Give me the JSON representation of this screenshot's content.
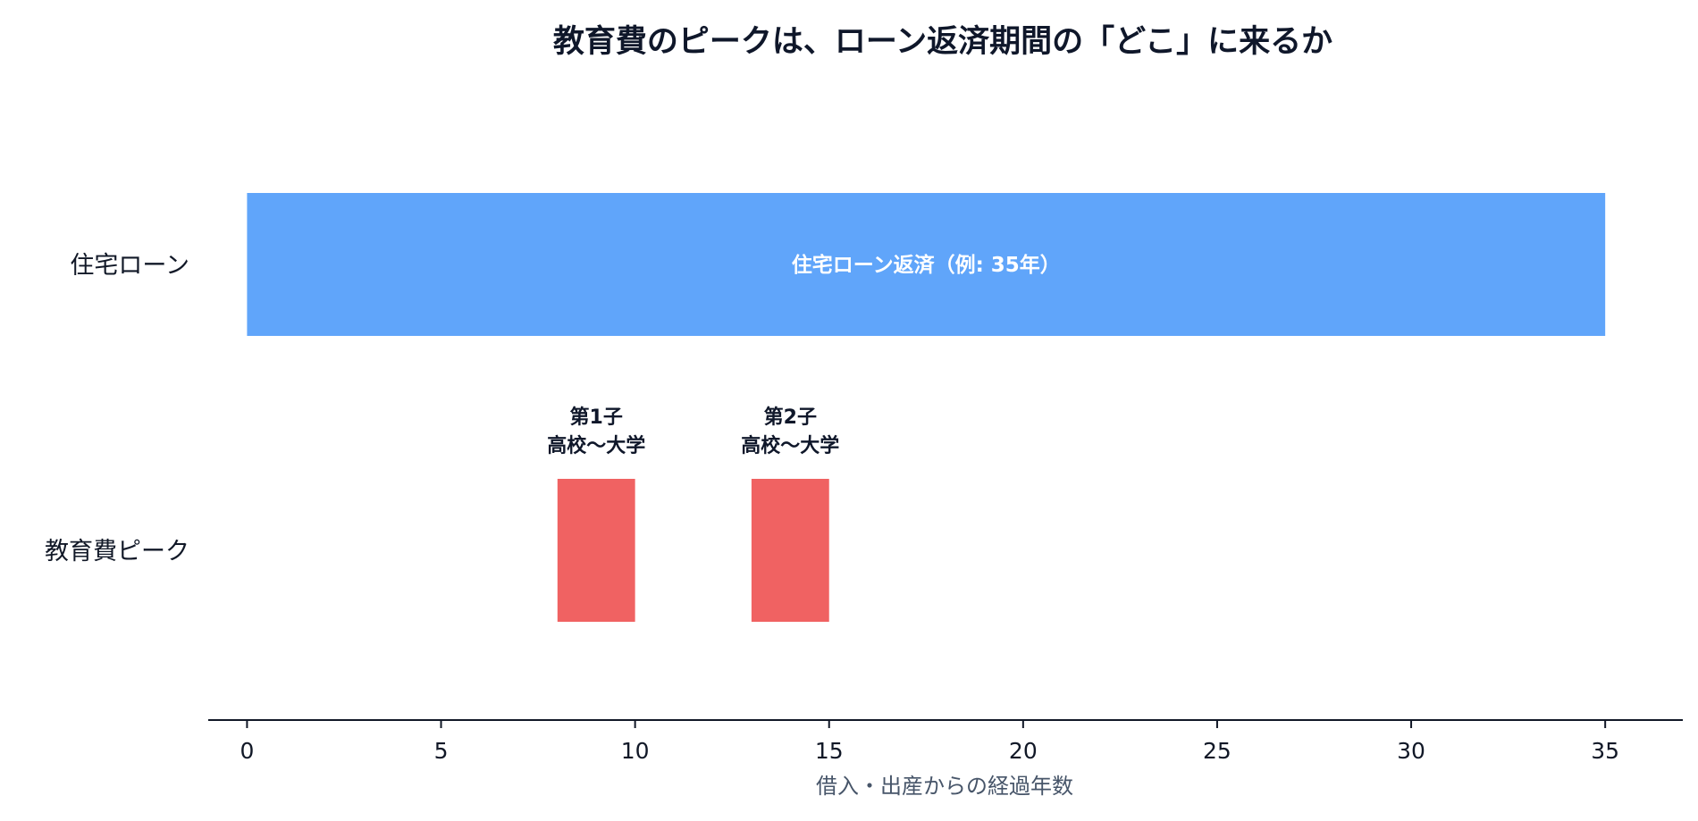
{
  "chart_data": {
    "type": "bar",
    "orientation": "horizontal-timeline",
    "title": "教育費のピークは、ローン返済期間の「どこ」に来るか",
    "xlabel": "借入・出産からの経過年数",
    "ylabel": "",
    "xlim": [
      -1,
      37
    ],
    "xticks": [
      0,
      5,
      10,
      15,
      20,
      25,
      30,
      35
    ],
    "grid": false,
    "categories": [
      "住宅ローン",
      "教育費ピーク"
    ],
    "bars": [
      {
        "category": "住宅ローン",
        "start": 0,
        "end": 35,
        "label": "住宅ローン返済（例: 35年）",
        "color": "#60a5fa"
      },
      {
        "category": "教育費ピーク",
        "start": 8,
        "end": 10,
        "annotation_line1": "第1子",
        "annotation_line2": "高校〜大学",
        "color": "#f06262"
      },
      {
        "category": "教育費ピーク",
        "start": 13,
        "end": 15,
        "annotation_line1": "第2子",
        "annotation_line2": "高校〜大学",
        "color": "#f06262"
      }
    ]
  },
  "colors": {
    "loan": "#60a5fa",
    "education": "#f06262",
    "text": "#0f172a",
    "axis_title": "#475569"
  }
}
